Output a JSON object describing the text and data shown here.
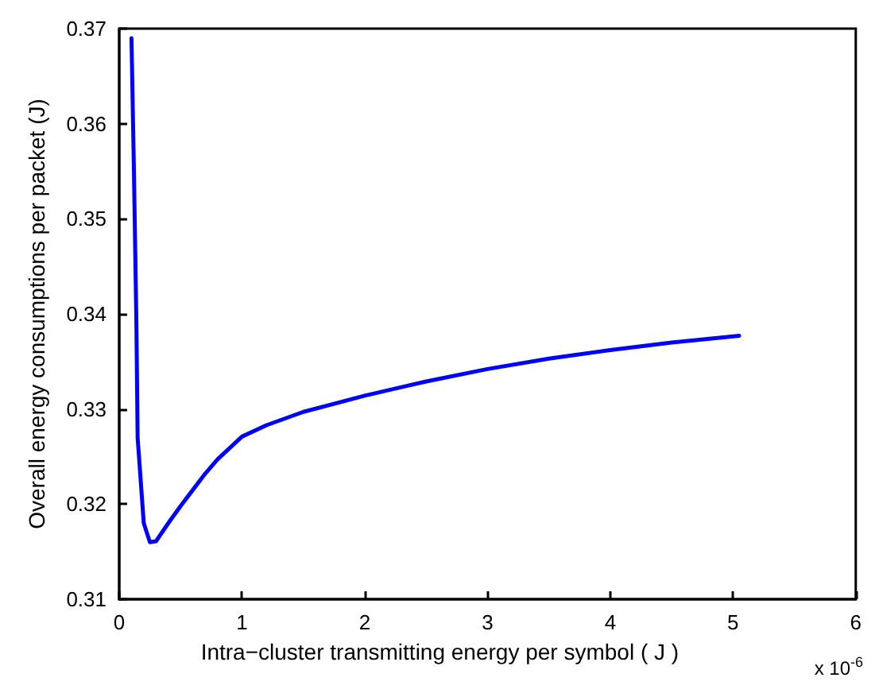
{
  "chart_data": {
    "type": "line",
    "xlabel": "Intra−cluster transmitting energy per symbol ( J )",
    "ylabel": "Overall energy consumptions per packet (J)",
    "annotations": [
      "x 10$^{-6}$"
    ],
    "xlim": [
      0,
      6
    ],
    "xticks": [
      0,
      1,
      2,
      3,
      4,
      5,
      6
    ],
    "ylim": [
      0.31,
      0.37
    ],
    "yticks": [
      0.31,
      0.32,
      0.33,
      0.34,
      0.35,
      0.36,
      0.37
    ],
    "grid": false,
    "marker": "none",
    "line_style": "solid",
    "series": [
      {
        "color": "#0000ff",
        "x": [
          0.1,
          0.12,
          0.14,
          0.15,
          0.2,
          0.25,
          0.3,
          0.4,
          0.5,
          0.6,
          0.7,
          0.8,
          1,
          1.2,
          1.5,
          2,
          2.5,
          3,
          3.5,
          4,
          4.5,
          5.05
        ],
        "values": [
          0.369,
          0.355,
          0.339,
          0.327,
          0.318,
          0.316,
          0.3161,
          0.318,
          0.3198,
          0.3215,
          0.3232,
          0.3247,
          0.3271,
          0.3283,
          0.3297,
          0.3314,
          0.3329,
          0.3342,
          0.3353,
          0.3362,
          0.337,
          0.3377
        ]
      }
    ]
  }
}
